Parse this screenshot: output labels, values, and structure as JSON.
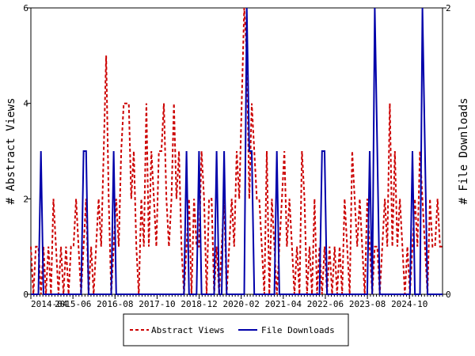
{
  "chart_data": {
    "type": "line",
    "title": "",
    "xlabel": "",
    "ylabel": "# Abstract Views",
    "y2label": "# File Downloads",
    "x_tick_labels": [
      "2014-04",
      "2015-06",
      "2016-08",
      "2017-10",
      "2018-12",
      "2020-02",
      "2021-04",
      "2022-06",
      "2023-08",
      "2024-10"
    ],
    "x_range": [
      "2014-04",
      "2025-09"
    ],
    "y_ticks": [
      "0",
      "2",
      "4",
      "6"
    ],
    "y2_ticks": [
      "0",
      "2"
    ],
    "ylim": [
      0,
      6
    ],
    "y2lim": [
      0,
      2
    ],
    "grid": false,
    "legend_position": "bottom",
    "series": [
      {
        "name": "Abstract Views",
        "axis": "left",
        "color": "#cc0000",
        "style": "dashed",
        "values": [
          1,
          0,
          1,
          1,
          0,
          1,
          0,
          1,
          0,
          2,
          1,
          0,
          1,
          0,
          1,
          0,
          1,
          1,
          2,
          1,
          0,
          1,
          2,
          0,
          1,
          0,
          1,
          2,
          1,
          3,
          5,
          2,
          0,
          1,
          2,
          1,
          3,
          4,
          4,
          4,
          2,
          3,
          1,
          0,
          2,
          1,
          4,
          1,
          3,
          2,
          1,
          3,
          3,
          4,
          2,
          1,
          2,
          4,
          2,
          3,
          1,
          0,
          1,
          2,
          0,
          2,
          1,
          1,
          3,
          2,
          0,
          2,
          2,
          0,
          1,
          0,
          1,
          2,
          0,
          1,
          2,
          1,
          3,
          2,
          4,
          6,
          5,
          2,
          4,
          3,
          2,
          2,
          1,
          0,
          3,
          0,
          2,
          1,
          0,
          1,
          2,
          3,
          1,
          2,
          1,
          0,
          1,
          0,
          3,
          2,
          0,
          1,
          0,
          2,
          0,
          1,
          0,
          1,
          0,
          1,
          0,
          1,
          0,
          1,
          0,
          2,
          1,
          0,
          3,
          2,
          1,
          2,
          1,
          0,
          2,
          1,
          0,
          1,
          1,
          0,
          1,
          2,
          1,
          4,
          1,
          3,
          1,
          2,
          1,
          0,
          1,
          0,
          1,
          2,
          1,
          3,
          2,
          1,
          0,
          2,
          1,
          1,
          2,
          1,
          1
        ]
      },
      {
        "name": "File Downloads",
        "axis": "right",
        "color": "#0000aa",
        "style": "solid",
        "values": [
          0,
          0,
          0,
          0,
          1,
          0,
          0,
          0,
          0,
          0,
          0,
          0,
          0,
          0,
          0,
          0,
          0,
          0,
          0,
          0,
          0,
          1,
          1,
          0,
          0,
          0,
          0,
          0,
          0,
          0,
          0,
          0,
          0,
          1,
          0,
          0,
          0,
          0,
          0,
          0,
          0,
          0,
          0,
          0,
          0,
          0,
          0,
          0,
          0,
          0,
          0,
          0,
          0,
          0,
          0,
          0,
          0,
          0,
          0,
          0,
          0,
          0,
          1,
          0,
          0,
          0,
          0,
          1,
          0,
          0,
          0,
          0,
          0,
          0,
          1,
          0,
          0,
          1,
          0,
          0,
          0,
          0,
          0,
          0,
          0,
          0,
          2,
          1,
          1,
          0,
          0,
          0,
          0,
          0,
          0,
          0,
          0,
          0,
          1,
          0,
          0,
          0,
          0,
          0,
          0,
          0,
          0,
          0,
          0,
          0,
          0,
          0,
          0,
          0,
          0,
          0,
          1,
          1,
          0,
          0,
          0,
          0,
          0,
          0,
          0,
          0,
          0,
          0,
          0,
          0,
          0,
          0,
          0,
          0,
          0,
          1,
          0,
          2,
          1,
          0,
          0,
          0,
          0,
          0,
          0,
          0,
          0,
          0,
          0,
          0,
          0,
          0,
          1,
          0,
          0,
          0,
          2,
          1,
          0,
          0,
          0,
          0,
          0,
          0,
          0
        ]
      }
    ]
  }
}
